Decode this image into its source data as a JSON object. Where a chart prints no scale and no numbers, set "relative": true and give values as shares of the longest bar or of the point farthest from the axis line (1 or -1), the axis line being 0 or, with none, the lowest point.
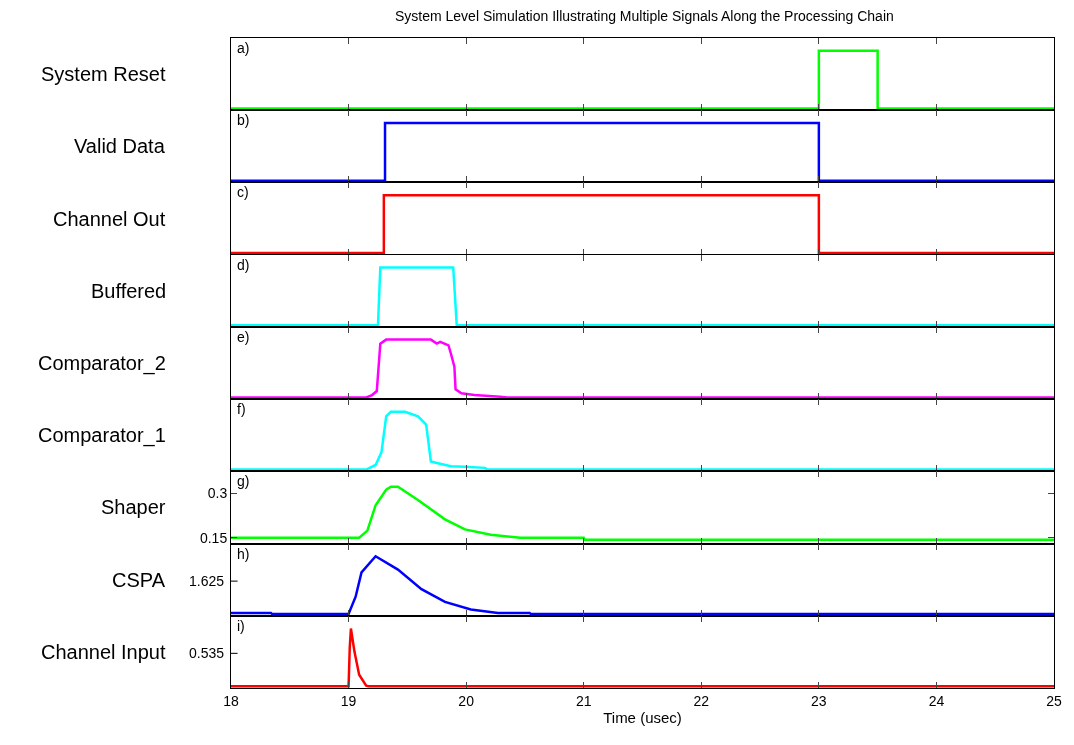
{
  "chart_data": [
    {
      "type": "line",
      "title": "System Level Simulation Illustrating Multiple Signals Along the Processing Chain",
      "ylabel": "System Reset",
      "annotations": [
        "a)"
      ],
      "relative": true,
      "tick_labels": false,
      "xlim": [
        18,
        25
      ],
      "xticks": [
        18,
        19,
        20,
        21,
        22,
        23,
        24,
        25
      ],
      "color": "#00ff00",
      "x": [
        18,
        23,
        23,
        23.5,
        23.5,
        25
      ],
      "values": [
        0,
        0,
        1,
        1,
        0,
        0
      ]
    },
    {
      "type": "line",
      "ylabel": "Valid Data",
      "annotations": [
        "b)"
      ],
      "relative": true,
      "tick_labels": false,
      "xlim": [
        18,
        25
      ],
      "xticks": [
        18,
        19,
        20,
        21,
        22,
        23,
        24,
        25
      ],
      "color": "#0000ff",
      "x": [
        18,
        19.31,
        19.31,
        23,
        23,
        25
      ],
      "values": [
        0,
        0,
        1,
        1,
        0,
        0
      ]
    },
    {
      "type": "line",
      "ylabel": "Channel Out",
      "annotations": [
        "c)"
      ],
      "relative": true,
      "tick_labels": false,
      "xlim": [
        18,
        25
      ],
      "xticks": [
        18,
        19,
        20,
        21,
        22,
        23,
        24,
        25
      ],
      "color": "#ff0000",
      "x": [
        18,
        19.3,
        19.3,
        23,
        23,
        25
      ],
      "values": [
        0,
        0,
        1,
        1,
        0,
        0
      ]
    },
    {
      "type": "line",
      "ylabel": "Buffered",
      "annotations": [
        "d)"
      ],
      "relative": true,
      "tick_labels": false,
      "xlim": [
        18,
        25
      ],
      "xticks": [
        18,
        19,
        20,
        21,
        22,
        23,
        24,
        25
      ],
      "color": "#00ffff",
      "x": [
        18,
        19.25,
        19.27,
        19.89,
        19.92,
        25
      ],
      "values": [
        0,
        0,
        1,
        1,
        0,
        0
      ]
    },
    {
      "type": "line",
      "ylabel": "Comparator_2",
      "annotations": [
        "e)"
      ],
      "relative": true,
      "tick_labels": false,
      "xlim": [
        18,
        25
      ],
      "xticks": [
        18,
        19,
        20,
        21,
        22,
        23,
        24,
        25
      ],
      "color": "#ff00ff",
      "x": [
        18,
        19.15,
        19.2,
        19.24,
        19.27,
        19.32,
        19.7,
        19.75,
        19.78,
        19.85,
        19.87,
        19.9,
        19.91,
        19.96,
        20.07,
        20.29,
        20.35,
        25
      ],
      "values": [
        0,
        0,
        0.04,
        0.11,
        0.93,
        1,
        1,
        0.93,
        0.96,
        0.9,
        0.76,
        0.53,
        0.14,
        0.07,
        0.04,
        0.01,
        0,
        0
      ]
    },
    {
      "type": "line",
      "ylabel": "Comparator_1",
      "annotations": [
        "f)"
      ],
      "relative": true,
      "tick_labels": false,
      "xlim": [
        18,
        25
      ],
      "xticks": [
        18,
        19,
        20,
        21,
        22,
        23,
        24,
        25
      ],
      "color": "#00ffff",
      "x": [
        18,
        19.15,
        19.23,
        19.28,
        19.32,
        19.36,
        19.48,
        19.59,
        19.66,
        19.7,
        19.76,
        19.87,
        19.99,
        20.16,
        20.18,
        25
      ],
      "values": [
        0,
        0,
        0.08,
        0.3,
        0.92,
        1,
        1,
        0.92,
        0.78,
        0.14,
        0.11,
        0.06,
        0.05,
        0.03,
        0,
        0
      ]
    },
    {
      "type": "line",
      "ylabel": "Shaper",
      "annotations": [
        "g)"
      ],
      "tick_labels": "y",
      "xlim": [
        18,
        25
      ],
      "xticks": [
        18,
        19,
        20,
        21,
        22,
        23,
        24,
        25
      ],
      "ylim": [
        0.13,
        0.375
      ],
      "yticks": [
        0.15,
        0.3
      ],
      "color": "#00ff00",
      "x": [
        18,
        19.09,
        19.16,
        19.23,
        19.32,
        19.36,
        19.42,
        19.59,
        19.82,
        19.99,
        20.21,
        20.46,
        21.0,
        21.01,
        25
      ],
      "values": [
        0.15,
        0.15,
        0.174,
        0.26,
        0.313,
        0.323,
        0.323,
        0.278,
        0.212,
        0.178,
        0.16,
        0.15,
        0.15,
        0.143,
        0.143
      ]
    },
    {
      "type": "line",
      "ylabel": "CSPA",
      "annotations": [
        "h)",
        "1.625"
      ],
      "relative": true,
      "tick_labels": false,
      "xlim": [
        18,
        25
      ],
      "xticks": [
        18,
        19,
        20,
        21,
        22,
        23,
        24,
        25
      ],
      "color": "#0000ff",
      "x": [
        18,
        18.34,
        18.35,
        19.0,
        19.06,
        19.11,
        19.23,
        19.42,
        19.62,
        19.82,
        20.04,
        20.27,
        20.54,
        20.55,
        25
      ],
      "values": [
        0.02,
        0.02,
        0,
        0,
        0.3,
        0.72,
        1,
        0.77,
        0.43,
        0.21,
        0.08,
        0.02,
        0.02,
        0,
        0
      ]
    },
    {
      "type": "line",
      "ylabel": "Channel Input",
      "xlabel": "Time (usec)",
      "annotations": [
        "i)",
        "0.535"
      ],
      "relative": true,
      "tick_labels": "x",
      "xlim": [
        18,
        25
      ],
      "xticks": [
        18,
        19,
        20,
        21,
        22,
        23,
        24,
        25
      ],
      "color": "#ff0000",
      "x": [
        18,
        19.0,
        19.01,
        19.02,
        19.05,
        19.09,
        19.15,
        19.17,
        25
      ],
      "values": [
        0,
        0,
        0.67,
        1,
        0.6,
        0.2,
        0.01,
        0,
        0
      ]
    }
  ]
}
